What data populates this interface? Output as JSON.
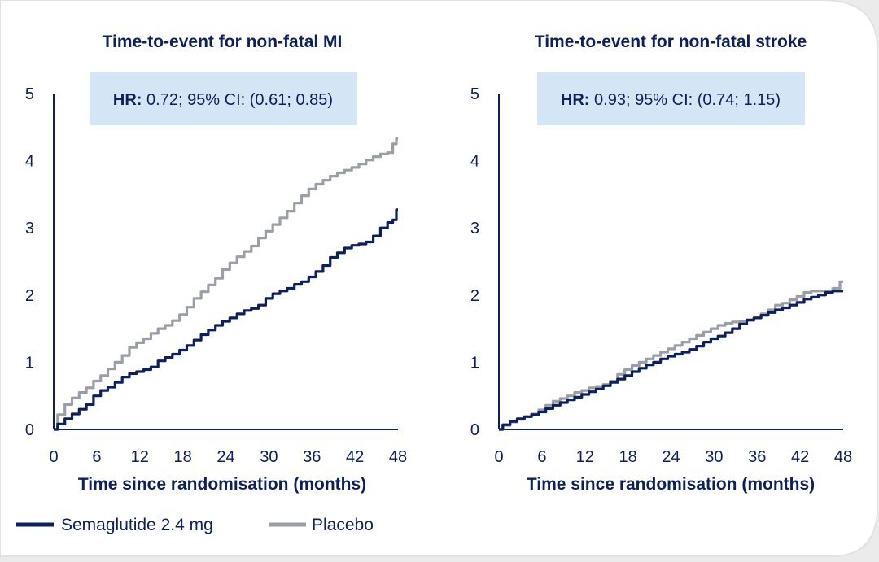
{
  "colors": {
    "semaglutide": "#0c1f5e",
    "placebo": "#9a9ea7",
    "hr_box": "#d4e6f5",
    "text": "#0c1f5e",
    "card": "#ffffff",
    "background": "#ebebeb"
  },
  "legend": {
    "semaglutide_label": "Semaglutide 2.4 mg",
    "placebo_label": "Placebo"
  },
  "chart_data": [
    {
      "type": "line",
      "title": "Time-to-event for non-fatal MI",
      "hr_label": "HR:",
      "hr_text": " 0.72; 95% CI: (0.61; 0.85)",
      "xlabel": "Time since randomisation (months)",
      "ylabel": "",
      "xlim": [
        0,
        48
      ],
      "ylim": [
        0,
        5
      ],
      "x_ticks": [
        "0",
        "6",
        "12",
        "18",
        "24",
        "30",
        "36",
        "42",
        "48"
      ],
      "y_ticks": [
        "0",
        "1",
        "2",
        "3",
        "4",
        "5"
      ],
      "series": [
        {
          "name": "Semaglutide 2.4 mg",
          "x": [
            0,
            1,
            2,
            3,
            4,
            5,
            6,
            7,
            8,
            9,
            10,
            11,
            12,
            13,
            14,
            15,
            16,
            17,
            18,
            19,
            20,
            21,
            22,
            23,
            24,
            25,
            26,
            27,
            28,
            29,
            30,
            31,
            32,
            33,
            34,
            35,
            36,
            37,
            38,
            39,
            40,
            41,
            42,
            43,
            44,
            45,
            46,
            47,
            47.5,
            48
          ],
          "y": [
            0,
            0.08,
            0.16,
            0.23,
            0.3,
            0.37,
            0.5,
            0.58,
            0.63,
            0.7,
            0.78,
            0.83,
            0.86,
            0.89,
            0.93,
            1.02,
            1.07,
            1.12,
            1.18,
            1.25,
            1.33,
            1.41,
            1.48,
            1.55,
            1.61,
            1.66,
            1.72,
            1.77,
            1.8,
            1.85,
            1.95,
            2.02,
            2.06,
            2.1,
            2.16,
            2.2,
            2.27,
            2.35,
            2.44,
            2.56,
            2.63,
            2.7,
            2.74,
            2.76,
            2.79,
            2.88,
            3.0,
            3.08,
            3.12,
            3.27
          ]
        },
        {
          "name": "Placebo",
          "x": [
            0,
            1,
            2,
            3,
            4,
            5,
            6,
            7,
            8,
            9,
            10,
            11,
            12,
            13,
            14,
            15,
            16,
            17,
            18,
            19,
            20,
            21,
            22,
            23,
            24,
            25,
            26,
            27,
            28,
            29,
            30,
            31,
            32,
            33,
            34,
            35,
            36,
            37,
            38,
            39,
            40,
            41,
            42,
            43,
            44,
            45,
            46,
            47,
            47.5,
            48
          ],
          "y": [
            0,
            0.22,
            0.37,
            0.47,
            0.55,
            0.62,
            0.72,
            0.8,
            0.9,
            1.0,
            1.1,
            1.22,
            1.29,
            1.35,
            1.43,
            1.5,
            1.55,
            1.62,
            1.71,
            1.82,
            1.95,
            2.05,
            2.15,
            2.25,
            2.38,
            2.48,
            2.57,
            2.65,
            2.73,
            2.85,
            2.95,
            3.05,
            3.15,
            3.25,
            3.37,
            3.48,
            3.58,
            3.65,
            3.71,
            3.77,
            3.82,
            3.86,
            3.9,
            3.95,
            4.01,
            4.06,
            4.1,
            4.12,
            4.25,
            4.33
          ]
        }
      ]
    },
    {
      "type": "line",
      "title": "Time-to-event for non-fatal stroke",
      "hr_label": "HR:",
      "hr_text": " 0.93; 95% CI: (0.74; 1.15)",
      "xlabel": "Time since randomisation (months)",
      "ylabel": "",
      "xlim": [
        0,
        48
      ],
      "ylim": [
        0,
        5
      ],
      "x_ticks": [
        "0",
        "6",
        "12",
        "18",
        "24",
        "30",
        "36",
        "42",
        "48"
      ],
      "y_ticks": [
        "0",
        "1",
        "2",
        "3",
        "4",
        "5"
      ],
      "series": [
        {
          "name": "Semaglutide 2.4 mg",
          "x": [
            0,
            1,
            2,
            3,
            4,
            5,
            6,
            7,
            8,
            9,
            10,
            11,
            12,
            13,
            14,
            15,
            16,
            17,
            18,
            19,
            20,
            21,
            22,
            23,
            24,
            25,
            26,
            27,
            28,
            29,
            30,
            31,
            32,
            33,
            34,
            35,
            36,
            37,
            38,
            39,
            40,
            41,
            42,
            43,
            44,
            45,
            46,
            47,
            48
          ],
          "y": [
            0,
            0.07,
            0.12,
            0.16,
            0.19,
            0.22,
            0.26,
            0.31,
            0.36,
            0.4,
            0.44,
            0.48,
            0.52,
            0.56,
            0.6,
            0.65,
            0.7,
            0.75,
            0.8,
            0.86,
            0.91,
            0.96,
            1.0,
            1.05,
            1.09,
            1.12,
            1.15,
            1.19,
            1.24,
            1.3,
            1.35,
            1.39,
            1.44,
            1.5,
            1.57,
            1.63,
            1.66,
            1.7,
            1.74,
            1.78,
            1.81,
            1.85,
            1.89,
            1.94,
            1.97,
            2.0,
            2.04,
            2.06,
            2.06
          ]
        },
        {
          "name": "Placebo",
          "x": [
            0,
            1,
            2,
            3,
            4,
            5,
            6,
            7,
            8,
            9,
            10,
            11,
            12,
            13,
            14,
            15,
            16,
            17,
            18,
            19,
            20,
            21,
            22,
            23,
            24,
            25,
            26,
            27,
            28,
            29,
            30,
            31,
            32,
            33,
            34,
            35,
            36,
            37,
            38,
            39,
            40,
            41,
            42,
            43,
            44,
            45,
            46,
            47,
            48
          ],
          "y": [
            0,
            0.06,
            0.11,
            0.15,
            0.19,
            0.23,
            0.29,
            0.36,
            0.42,
            0.46,
            0.5,
            0.55,
            0.58,
            0.62,
            0.64,
            0.67,
            0.72,
            0.82,
            0.89,
            0.95,
            1.0,
            1.05,
            1.1,
            1.15,
            1.2,
            1.25,
            1.3,
            1.35,
            1.4,
            1.45,
            1.5,
            1.55,
            1.58,
            1.6,
            1.61,
            1.62,
            1.66,
            1.72,
            1.78,
            1.85,
            1.88,
            1.93,
            1.98,
            2.04,
            2.06,
            2.06,
            2.06,
            2.1,
            2.2
          ]
        }
      ]
    }
  ]
}
